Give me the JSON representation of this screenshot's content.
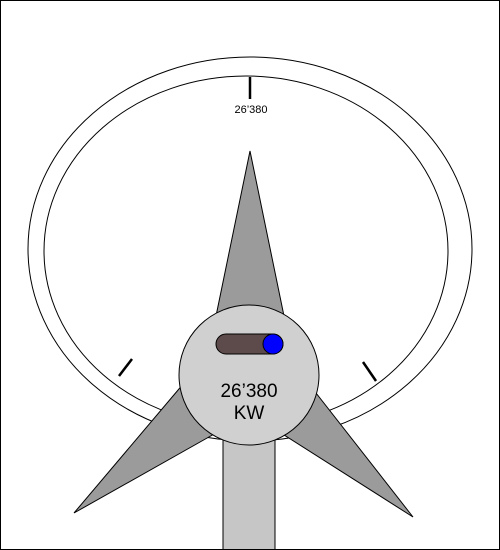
{
  "gauge": {
    "max_label": "26’380",
    "colors": {
      "blade": "#9b9b9b",
      "hub": "#d0d0d0",
      "tower": "#c6c6c6",
      "ring": "#ffffff",
      "outline": "#000000"
    }
  },
  "hub": {
    "value": "26’380",
    "unit": "KW"
  },
  "toggle": {
    "state": "on",
    "track_color": "#5d4a4a",
    "knob_color": "#0000ff"
  }
}
